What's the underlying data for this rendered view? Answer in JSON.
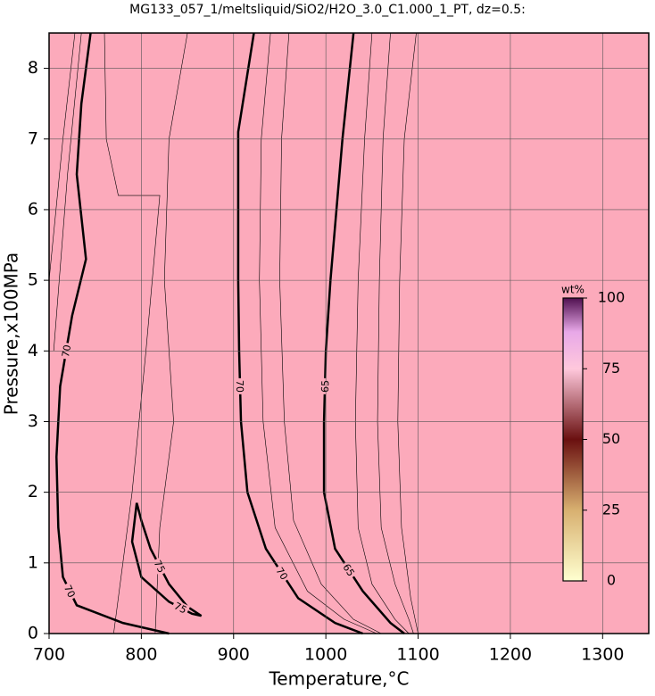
{
  "chart_data": {
    "type": "contour",
    "title": "MG133_057_1/meltsliquid/SiO2/H2O_3.0_C1.000_1_PT, dz=0.5:",
    "x_label": "Temperature,°C",
    "y_label": "Pressure,x100MPa",
    "xlim": [
      700,
      1350
    ],
    "ylim": [
      0,
      8.5
    ],
    "xticks": [
      700,
      800,
      900,
      1000,
      1100,
      1200,
      1300
    ],
    "yticks": [
      0,
      1,
      2,
      3,
      4,
      5,
      6,
      7,
      8
    ],
    "grid": true,
    "background": "#fcaabb",
    "colorbar": {
      "label": "wt%",
      "lim": [
        0,
        100
      ],
      "ticks": [
        0,
        25,
        50,
        75,
        100
      ]
    },
    "contours": [
      {
        "level": 70,
        "bold": true,
        "x": [
          745,
          735,
          730,
          740,
          725,
          712,
          708,
          710,
          715,
          730,
          780,
          830
        ],
        "y": [
          8.5,
          7.5,
          6.5,
          5.3,
          4.5,
          3.5,
          2.5,
          1.5,
          0.8,
          0.4,
          0.15,
          0
        ]
      },
      {
        "level": 70,
        "bold": true,
        "x": [
          922,
          905,
          905,
          906,
          908,
          915,
          935,
          970,
          1010,
          1040
        ],
        "y": [
          8.5,
          7.1,
          5,
          4,
          3,
          2,
          1.2,
          0.5,
          0.15,
          0
        ]
      },
      {
        "level": 65,
        "bold": true,
        "x": [
          1030,
          1018,
          1005,
          1000,
          998,
          998,
          1010,
          1040,
          1070,
          1085
        ],
        "y": [
          8.5,
          7,
          5,
          4,
          3,
          2,
          1.2,
          0.6,
          0.15,
          0
        ]
      },
      {
        "level": 75,
        "bold": true,
        "x": [
          795,
          790,
          800,
          830,
          855,
          865,
          850,
          830,
          810,
          800,
          795
        ],
        "y": [
          1.85,
          1.3,
          0.8,
          0.45,
          0.28,
          0.25,
          0.38,
          0.7,
          1.2,
          1.6,
          1.85
        ]
      }
    ],
    "thin_contours": [
      {
        "x": [
          705,
          720,
          735
        ],
        "y": [
          4,
          6.5,
          8.5
        ]
      },
      {
        "x": [
          700,
          715,
          728
        ],
        "y": [
          5,
          7,
          8.5
        ]
      },
      {
        "x": [
          760,
          762,
          775,
          820,
          805,
          790,
          770
        ],
        "y": [
          8.5,
          7,
          6.2,
          6.2,
          4,
          2,
          0
        ]
      },
      {
        "x": [
          850,
          830,
          825,
          835,
          820,
          815
        ],
        "y": [
          8.5,
          7,
          5,
          3,
          1.5,
          0
        ]
      },
      {
        "x": [
          940,
          930,
          928,
          932,
          945,
          980,
          1020,
          1055
        ],
        "y": [
          8.5,
          7,
          5,
          3,
          1.5,
          0.6,
          0.2,
          0
        ]
      },
      {
        "x": [
          960,
          952,
          950,
          955,
          965,
          995,
          1030,
          1060
        ],
        "y": [
          8.5,
          7,
          5,
          3,
          1.6,
          0.7,
          0.2,
          0
        ]
      },
      {
        "x": [
          1050,
          1042,
          1035,
          1032,
          1035,
          1050,
          1075,
          1090
        ],
        "y": [
          8.5,
          7,
          5,
          3,
          1.5,
          0.7,
          0.2,
          0
        ]
      },
      {
        "x": [
          1070,
          1062,
          1058,
          1056,
          1060,
          1075,
          1090,
          1095
        ],
        "y": [
          8.5,
          7,
          5,
          3,
          1.5,
          0.7,
          0.2,
          0
        ]
      },
      {
        "x": [
          1098,
          1085,
          1080,
          1078,
          1082,
          1092,
          1100
        ],
        "y": [
          8.5,
          7,
          5,
          3,
          1.5,
          0.5,
          0
        ]
      }
    ]
  }
}
